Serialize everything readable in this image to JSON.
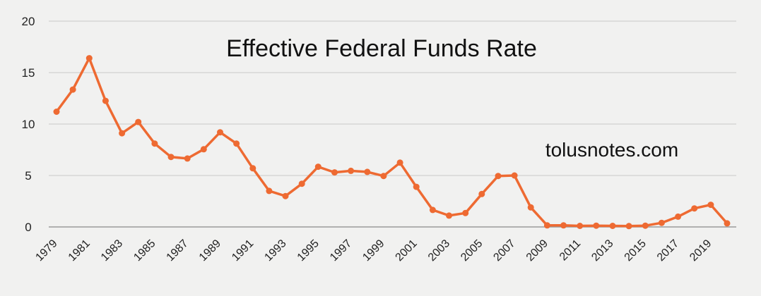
{
  "chart_data": {
    "type": "line",
    "title": "Effective Federal Funds Rate",
    "annotation": "tolusnotes.com",
    "xlabel": "",
    "ylabel": "",
    "ylim": [
      0,
      20
    ],
    "yticks": [
      "0",
      "5",
      "10",
      "15",
      "20"
    ],
    "grid": true,
    "line_color": "#ee6a32",
    "x": [
      1979,
      1980,
      1981,
      1982,
      1983,
      1984,
      1985,
      1986,
      1987,
      1988,
      1989,
      1990,
      1991,
      1992,
      1993,
      1994,
      1995,
      1996,
      1997,
      1998,
      1999,
      2000,
      2001,
      2002,
      2003,
      2004,
      2005,
      2006,
      2007,
      2008,
      2009,
      2010,
      2011,
      2012,
      2013,
      2014,
      2015,
      2016,
      2017,
      2018,
      2019,
      2020
    ],
    "x_tick_labels": [
      "1979",
      "1981",
      "1983",
      "1985",
      "1987",
      "1989",
      "1991",
      "1993",
      "1995",
      "1997",
      "1999",
      "2001",
      "2003",
      "2005",
      "2007",
      "2009",
      "2011",
      "2013",
      "2015",
      "2017",
      "2019"
    ],
    "series": [
      {
        "name": "Effective Federal Funds Rate",
        "values": [
          11.2,
          13.35,
          16.4,
          12.25,
          9.1,
          10.2,
          8.1,
          6.8,
          6.65,
          7.55,
          9.2,
          8.1,
          5.7,
          3.5,
          3.0,
          4.2,
          5.85,
          5.3,
          5.45,
          5.35,
          4.95,
          6.25,
          3.9,
          1.65,
          1.1,
          1.35,
          3.2,
          4.95,
          5.0,
          1.9,
          0.15,
          0.15,
          0.1,
          0.12,
          0.1,
          0.08,
          0.12,
          0.4,
          1.0,
          1.8,
          2.15,
          0.35
        ]
      }
    ]
  }
}
